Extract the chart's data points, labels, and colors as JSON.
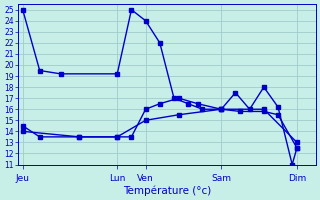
{
  "title": "Température (°c)",
  "bg_color": "#c8eee8",
  "grid_color": "#a0cccc",
  "line_color": "#0000cc",
  "ylim": [
    11,
    25.5
  ],
  "yticks": [
    11,
    12,
    13,
    14,
    15,
    16,
    17,
    18,
    19,
    20,
    21,
    22,
    23,
    24,
    25
  ],
  "day_labels": [
    "Jeu",
    "Lun",
    "Ven",
    "Sam",
    "Dim"
  ],
  "day_x": [
    0,
    100,
    130,
    210,
    290
  ],
  "xlim": [
    -5,
    310
  ],
  "line1_x": [
    0,
    18,
    40,
    100,
    115,
    130,
    145,
    160,
    175,
    190,
    210,
    225,
    240,
    255,
    270,
    285,
    290
  ],
  "line1_y": [
    25,
    19.5,
    19.2,
    19.2,
    25.0,
    24.0,
    22.0,
    17.0,
    16.5,
    16.0,
    16.0,
    17.5,
    16.0,
    18.0,
    16.2,
    11.0,
    12.5
  ],
  "line2_x": [
    0,
    18,
    60,
    100,
    115,
    130,
    145,
    165,
    185,
    210,
    230,
    255,
    270,
    290
  ],
  "line2_y": [
    14.5,
    13.5,
    13.5,
    13.5,
    13.5,
    16.0,
    16.5,
    17.0,
    16.5,
    16.0,
    15.8,
    15.8,
    15.5,
    12.5
  ],
  "line3_x": [
    0,
    60,
    100,
    130,
    165,
    210,
    255,
    290
  ],
  "line3_y": [
    14.0,
    13.5,
    13.5,
    15.0,
    15.5,
    16.0,
    16.0,
    13.0
  ]
}
